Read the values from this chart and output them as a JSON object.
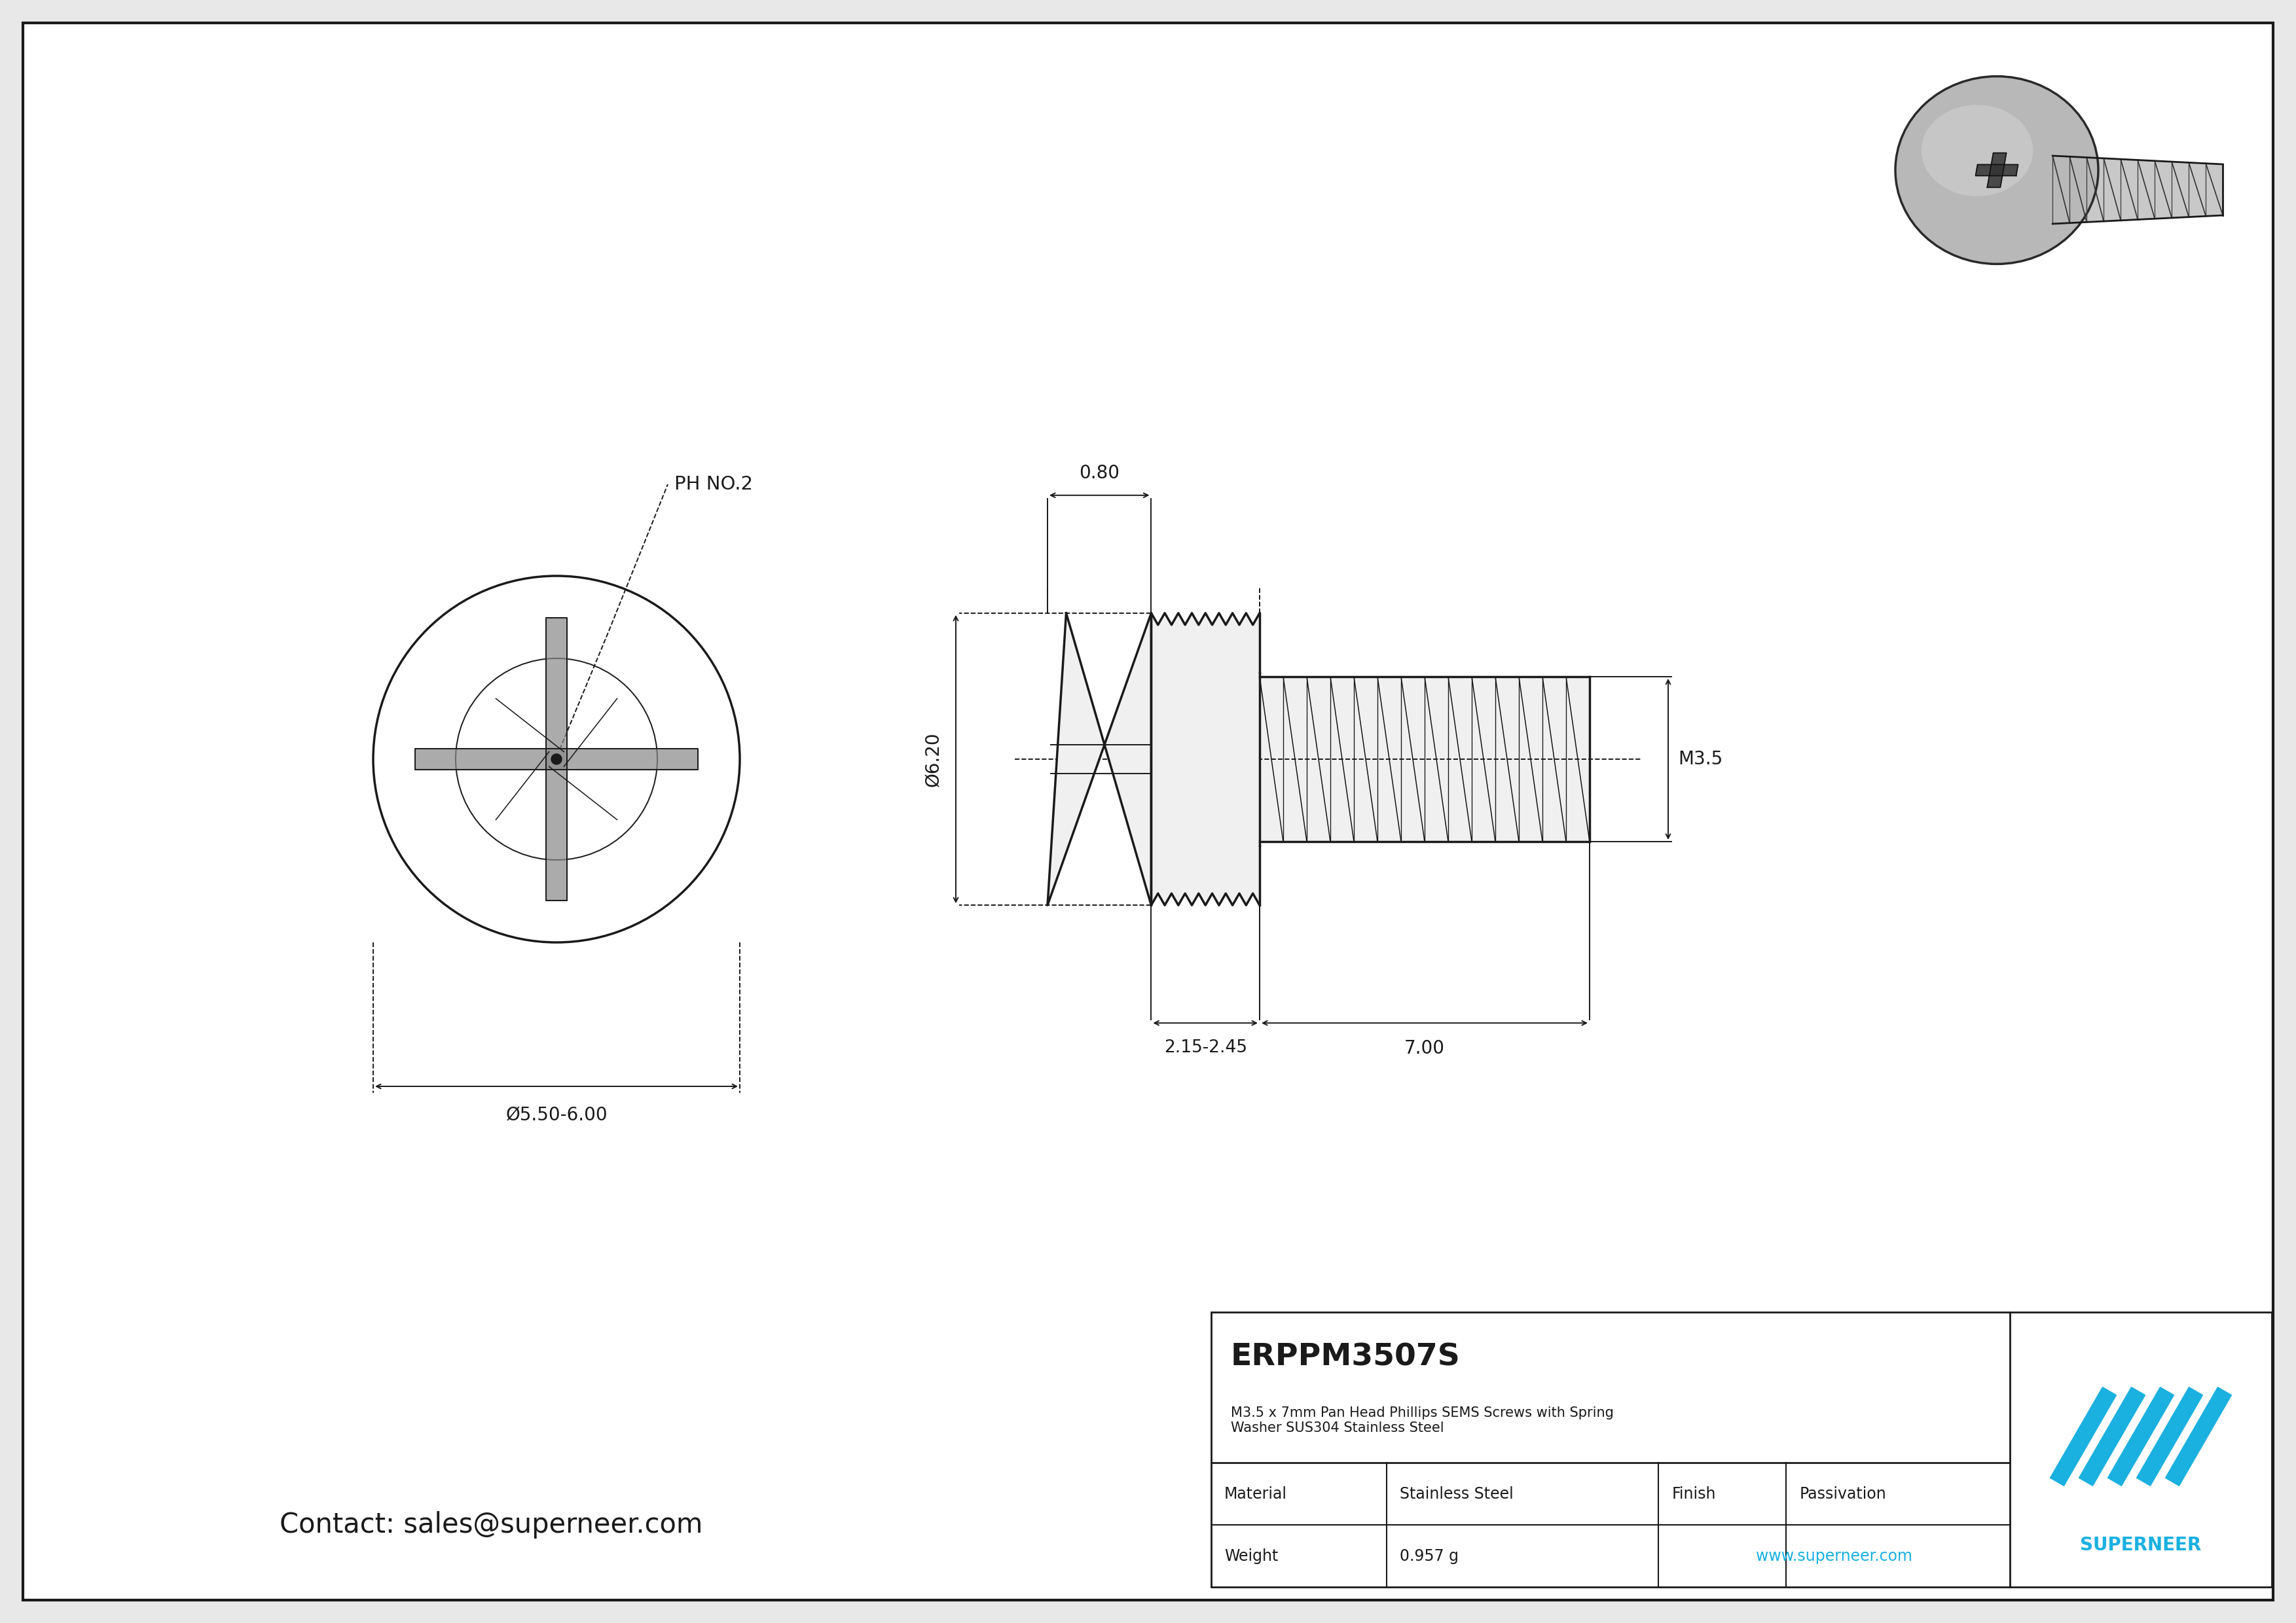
{
  "bg_color": "#e8e8e8",
  "drawing_bg": "#ffffff",
  "line_color": "#1a1a1a",
  "dim_color": "#1a1a1a",
  "title": "ERPPM3507S",
  "subtitle": "M3.5 x 7mm Pan Head Phillips SEMS Screws with Spring\nWasher SUS304 Stainless Steel",
  "material": "Stainless Steel",
  "finish": "Passivation",
  "weight": "0.957 g",
  "website": "www.superneer.com",
  "contact": "Contact: sales@superneer.com",
  "superneer_color": "#1ab0e0",
  "ph_label": "PH NO.2",
  "dim_dia_head": "Ø5.50-6.00",
  "dim_dia_screw": "Ø6.20",
  "dim_thread": "M3.5",
  "dim_head_height": "0.80",
  "dim_washer_len": "2.15-2.45",
  "dim_shank_len": "7.00",
  "border_color": "#1a1a1a"
}
